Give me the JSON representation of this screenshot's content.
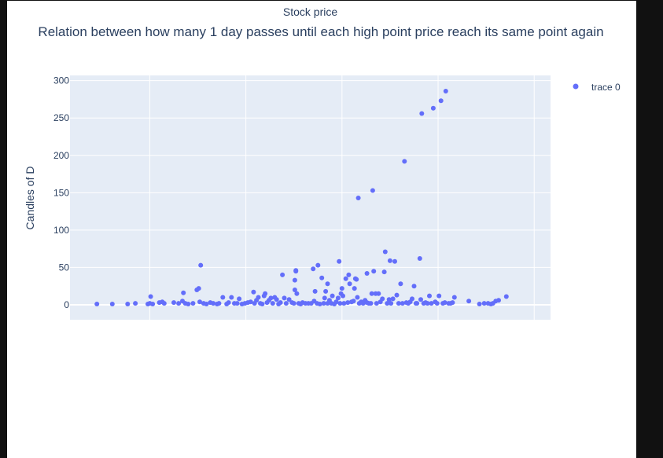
{
  "page": {
    "title": "Stock price"
  },
  "colors": {
    "marker": "#636efa",
    "plot_bg": "#e5ecf6",
    "grid": "#ffffff",
    "text": "#2a3f5f"
  },
  "chart_data": {
    "type": "scatter",
    "title": "Relation between how many 1 day passes until each high point price reach its same point again",
    "xlabel": "",
    "ylabel": "Candles of D",
    "xlim": [
      -33,
      467
    ],
    "ylim": [
      -20,
      307
    ],
    "x_ticks": [
      50,
      150,
      250,
      350,
      450
    ],
    "y_ticks": [
      0,
      50,
      100,
      150,
      200,
      250,
      300
    ],
    "show_x_tick_labels": false,
    "grid": true,
    "legend_position": "top-right",
    "series": [
      {
        "name": "trace 0",
        "points": [
          [
            -5,
            1
          ],
          [
            11,
            1
          ],
          [
            27,
            1
          ],
          [
            35,
            2
          ],
          [
            48,
            1
          ],
          [
            50,
            2
          ],
          [
            51,
            11
          ],
          [
            53,
            1
          ],
          [
            60,
            3
          ],
          [
            63,
            4
          ],
          [
            65,
            2
          ],
          [
            75,
            3
          ],
          [
            80,
            2
          ],
          [
            84,
            5
          ],
          [
            85,
            16
          ],
          [
            87,
            2
          ],
          [
            90,
            1
          ],
          [
            95,
            2
          ],
          [
            99,
            20
          ],
          [
            101,
            22
          ],
          [
            102,
            4
          ],
          [
            103,
            53
          ],
          [
            106,
            2
          ],
          [
            109,
            1
          ],
          [
            113,
            3
          ],
          [
            116,
            2
          ],
          [
            120,
            1
          ],
          [
            122,
            2
          ],
          [
            126,
            10
          ],
          [
            130,
            1
          ],
          [
            132,
            3
          ],
          [
            135,
            10
          ],
          [
            138,
            2
          ],
          [
            141,
            2
          ],
          [
            143,
            8
          ],
          [
            146,
            1
          ],
          [
            149,
            2
          ],
          [
            152,
            3
          ],
          [
            155,
            4
          ],
          [
            158,
            17
          ],
          [
            159,
            2
          ],
          [
            161,
            6
          ],
          [
            163,
            10
          ],
          [
            165,
            2
          ],
          [
            167,
            1
          ],
          [
            169,
            12
          ],
          [
            170,
            15
          ],
          [
            172,
            3
          ],
          [
            174,
            6
          ],
          [
            176,
            9
          ],
          [
            178,
            2
          ],
          [
            180,
            10
          ],
          [
            182,
            7
          ],
          [
            184,
            1
          ],
          [
            186,
            3
          ],
          [
            188,
            40
          ],
          [
            190,
            9
          ],
          [
            192,
            2
          ],
          [
            195,
            7
          ],
          [
            198,
            3
          ],
          [
            200,
            2
          ],
          [
            201,
            20
          ],
          [
            201,
            33
          ],
          [
            202,
            45
          ],
          [
            202,
            46
          ],
          [
            203,
            15
          ],
          [
            205,
            2
          ],
          [
            207,
            1
          ],
          [
            209,
            3
          ],
          [
            212,
            2
          ],
          [
            215,
            2
          ],
          [
            218,
            2
          ],
          [
            220,
            48
          ],
          [
            221,
            5
          ],
          [
            222,
            18
          ],
          [
            224,
            2
          ],
          [
            225,
            53
          ],
          [
            227,
            1
          ],
          [
            229,
            36
          ],
          [
            231,
            2
          ],
          [
            232,
            9
          ],
          [
            233,
            18
          ],
          [
            235,
            2
          ],
          [
            235,
            28
          ],
          [
            237,
            6
          ],
          [
            239,
            2
          ],
          [
            240,
            12
          ],
          [
            242,
            1
          ],
          [
            244,
            4
          ],
          [
            246,
            9
          ],
          [
            247,
            58
          ],
          [
            248,
            2
          ],
          [
            249,
            15
          ],
          [
            250,
            22
          ],
          [
            251,
            12
          ],
          [
            252,
            2
          ],
          [
            254,
            35
          ],
          [
            256,
            3
          ],
          [
            257,
            40
          ],
          [
            258,
            28
          ],
          [
            260,
            4
          ],
          [
            262,
            5
          ],
          [
            263,
            22
          ],
          [
            264,
            35
          ],
          [
            265,
            34
          ],
          [
            266,
            10
          ],
          [
            267,
            143
          ],
          [
            268,
            2
          ],
          [
            270,
            4
          ],
          [
            272,
            2
          ],
          [
            274,
            6
          ],
          [
            276,
            3
          ],
          [
            276,
            42
          ],
          [
            278,
            2
          ],
          [
            280,
            2
          ],
          [
            281,
            15
          ],
          [
            282,
            153
          ],
          [
            283,
            45
          ],
          [
            285,
            15
          ],
          [
            286,
            2
          ],
          [
            288,
            15
          ],
          [
            290,
            4
          ],
          [
            292,
            8
          ],
          [
            294,
            44
          ],
          [
            295,
            71
          ],
          [
            297,
            2
          ],
          [
            299,
            7
          ],
          [
            300,
            59
          ],
          [
            301,
            2
          ],
          [
            303,
            8
          ],
          [
            305,
            58
          ],
          [
            307,
            13
          ],
          [
            309,
            2
          ],
          [
            311,
            28
          ],
          [
            313,
            2
          ],
          [
            315,
            192
          ],
          [
            317,
            3
          ],
          [
            319,
            2
          ],
          [
            321,
            4
          ],
          [
            323,
            8
          ],
          [
            325,
            25
          ],
          [
            327,
            2
          ],
          [
            328,
            2
          ],
          [
            331,
            62
          ],
          [
            332,
            7
          ],
          [
            333,
            256
          ],
          [
            335,
            2
          ],
          [
            337,
            3
          ],
          [
            339,
            2
          ],
          [
            341,
            12
          ],
          [
            343,
            2
          ],
          [
            345,
            263
          ],
          [
            347,
            4
          ],
          [
            349,
            2
          ],
          [
            351,
            12
          ],
          [
            353,
            273
          ],
          [
            355,
            2
          ],
          [
            357,
            3
          ],
          [
            358,
            286
          ],
          [
            361,
            2
          ],
          [
            363,
            2
          ],
          [
            365,
            3
          ],
          [
            367,
            10
          ],
          [
            382,
            5
          ],
          [
            393,
            1
          ],
          [
            398,
            2
          ],
          [
            402,
            2
          ],
          [
            405,
            1
          ],
          [
            407,
            2
          ],
          [
            410,
            5
          ],
          [
            413,
            6
          ],
          [
            421,
            11
          ]
        ]
      }
    ]
  }
}
